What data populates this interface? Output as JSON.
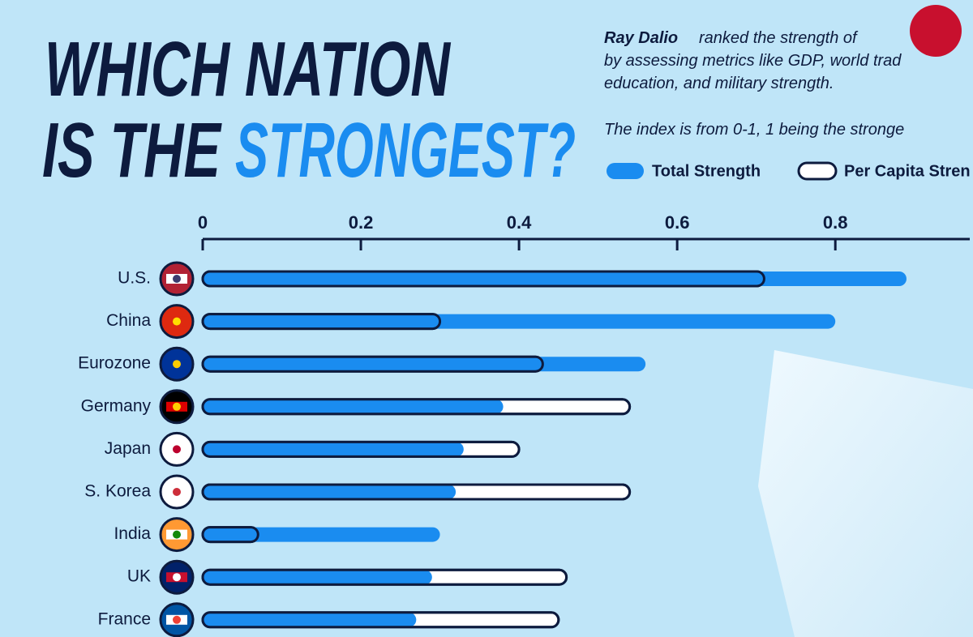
{
  "chart_data": {
    "type": "overlay-bar",
    "title_lines": [
      "WHICH NATION",
      "IS THE",
      "STRONGEST?"
    ],
    "description": [
      "Ray Dalio",
      "ranked the strength of",
      "by assessing metrics like GDP, world trad",
      "education, and military strength.",
      "The index is from 0-1, 1 being the stronge"
    ],
    "categories": [
      "U.S.",
      "China",
      "Eurozone",
      "Germany",
      "Japan",
      "S. Korea",
      "India",
      "UK",
      "France"
    ],
    "series": [
      {
        "name": "Total Strength",
        "color": "#1a8cf0",
        "values": [
          0.89,
          0.8,
          0.56,
          0.38,
          0.33,
          0.32,
          0.3,
          0.29,
          0.27
        ]
      },
      {
        "name": "Per Capita Stren",
        "color": "#ffffff",
        "values": [
          0.71,
          0.3,
          0.43,
          0.54,
          0.4,
          0.54,
          0.07,
          0.46,
          0.45
        ]
      }
    ],
    "xlim": [
      0,
      0.97
    ],
    "xticks": [
      0,
      0.2,
      0.4,
      0.6,
      0.8
    ]
  }
}
